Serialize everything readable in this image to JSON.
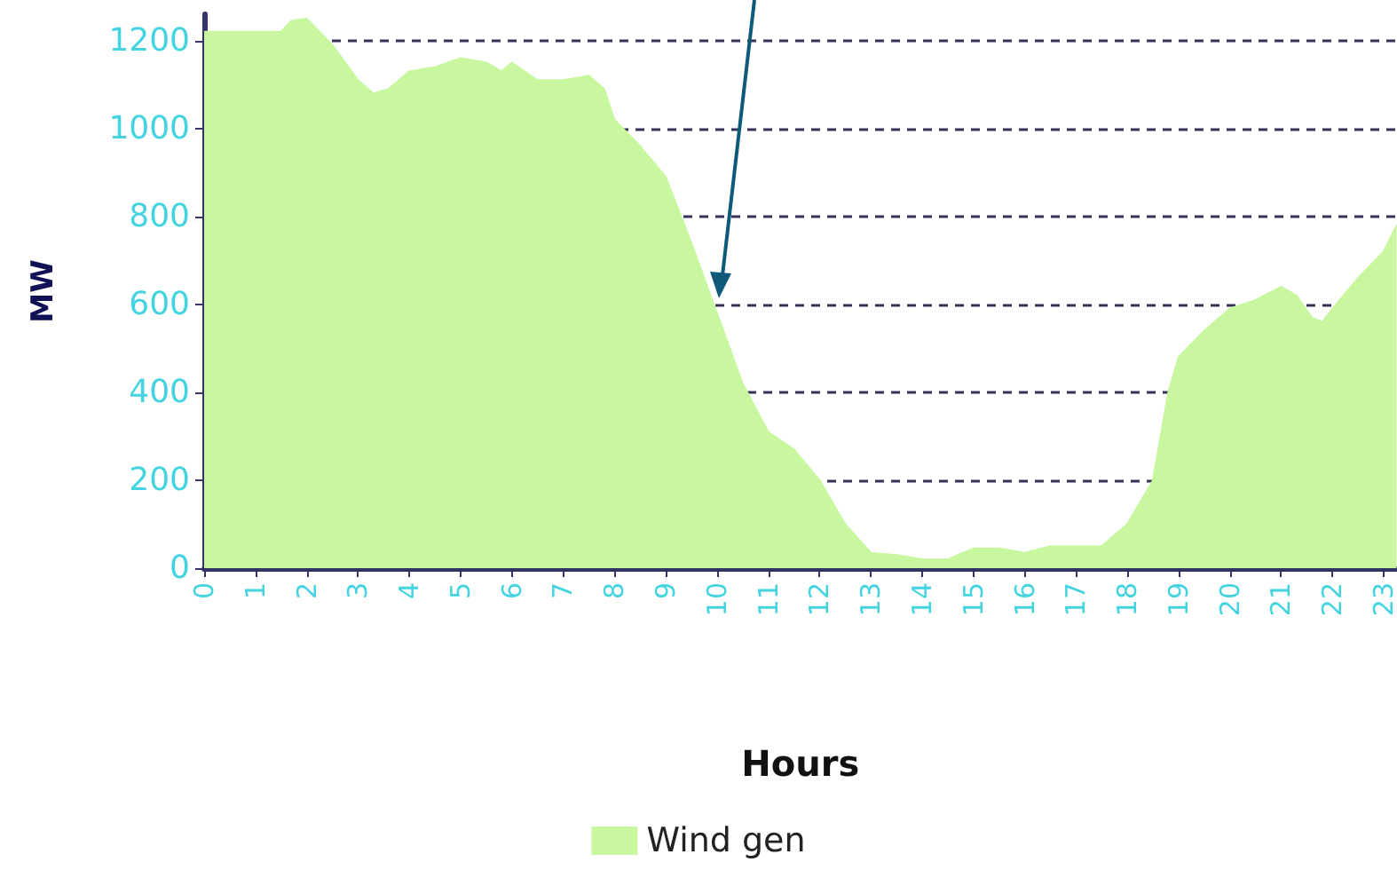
{
  "chart_data": {
    "type": "area",
    "xlabel": "Hours",
    "ylabel": "MW",
    "x": [
      0,
      0.5,
      1.5,
      1.7,
      2,
      2.5,
      3,
      3.3,
      3.6,
      4,
      4.5,
      5,
      5.5,
      5.8,
      6,
      6.5,
      7,
      7.5,
      7.8,
      8,
      8.5,
      9,
      9.5,
      10,
      10.5,
      11,
      11.5,
      12,
      12.5,
      13,
      13.5,
      14,
      14.5,
      15,
      15.5,
      16,
      16.5,
      17,
      17.5,
      18,
      18.5,
      18.8,
      19,
      19.5,
      20,
      20.5,
      21,
      21.3,
      21.6,
      21.8,
      22,
      22.5,
      23,
      23.25
    ],
    "series": [
      {
        "name": "Wind gen",
        "color": "#c8f7a0",
        "values": [
          1220,
          1220,
          1220,
          1245,
          1250,
          1190,
          1110,
          1080,
          1090,
          1130,
          1140,
          1160,
          1150,
          1130,
          1150,
          1110,
          1110,
          1120,
          1090,
          1020,
          960,
          890,
          740,
          580,
          420,
          310,
          270,
          200,
          100,
          35,
          30,
          20,
          20,
          45,
          45,
          35,
          50,
          50,
          50,
          100,
          200,
          400,
          480,
          540,
          590,
          610,
          640,
          620,
          570,
          560,
          590,
          660,
          720,
          780
        ]
      }
    ],
    "xlim": [
      0,
      23.25
    ],
    "xticks": [
      0,
      1,
      2,
      3,
      4,
      5,
      6,
      7,
      8,
      9,
      10,
      11,
      12,
      13,
      14,
      15,
      16,
      17,
      18,
      19,
      20,
      21,
      22,
      23
    ],
    "ylim": [
      0,
      1260
    ],
    "yticks": [
      0,
      200,
      400,
      600,
      800,
      1000,
      1200
    ],
    "grid": "y",
    "legend": "bottom",
    "marker": "none"
  }
}
